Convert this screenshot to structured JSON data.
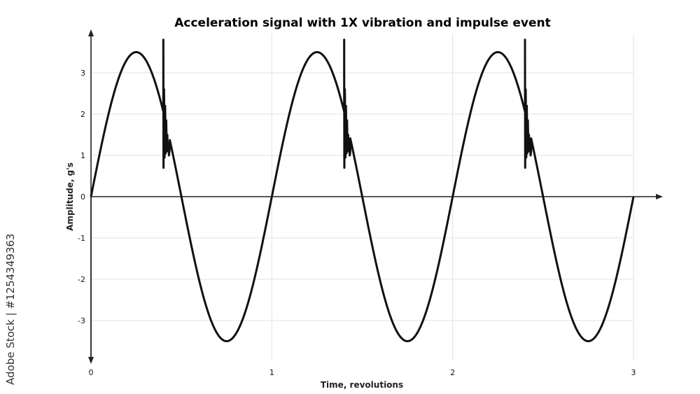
{
  "chart_data": {
    "type": "line",
    "title": "Acceleration signal with 1X vibration and impulse event",
    "xlabel": "Time, revolutions",
    "ylabel": "Amplitude, g's",
    "xlim": [
      0,
      3
    ],
    "ylim": [
      -3.5,
      3.5
    ],
    "x_ticks": [
      "0",
      "1",
      "2",
      "3"
    ],
    "y_ticks": [
      "3",
      "2",
      "1",
      "0",
      "-1",
      "-2",
      "-3"
    ],
    "grid": true,
    "series": [
      {
        "amplitude": 3.5,
        "frequency_per_revolution": 1,
        "impulse_times": [
          0.4,
          1.4,
          2.4
        ],
        "impulse_peak": 3.8,
        "impulse_trough": 0.7
      }
    ]
  },
  "watermark": {
    "text": "Adobe Stock | #1254349363"
  }
}
